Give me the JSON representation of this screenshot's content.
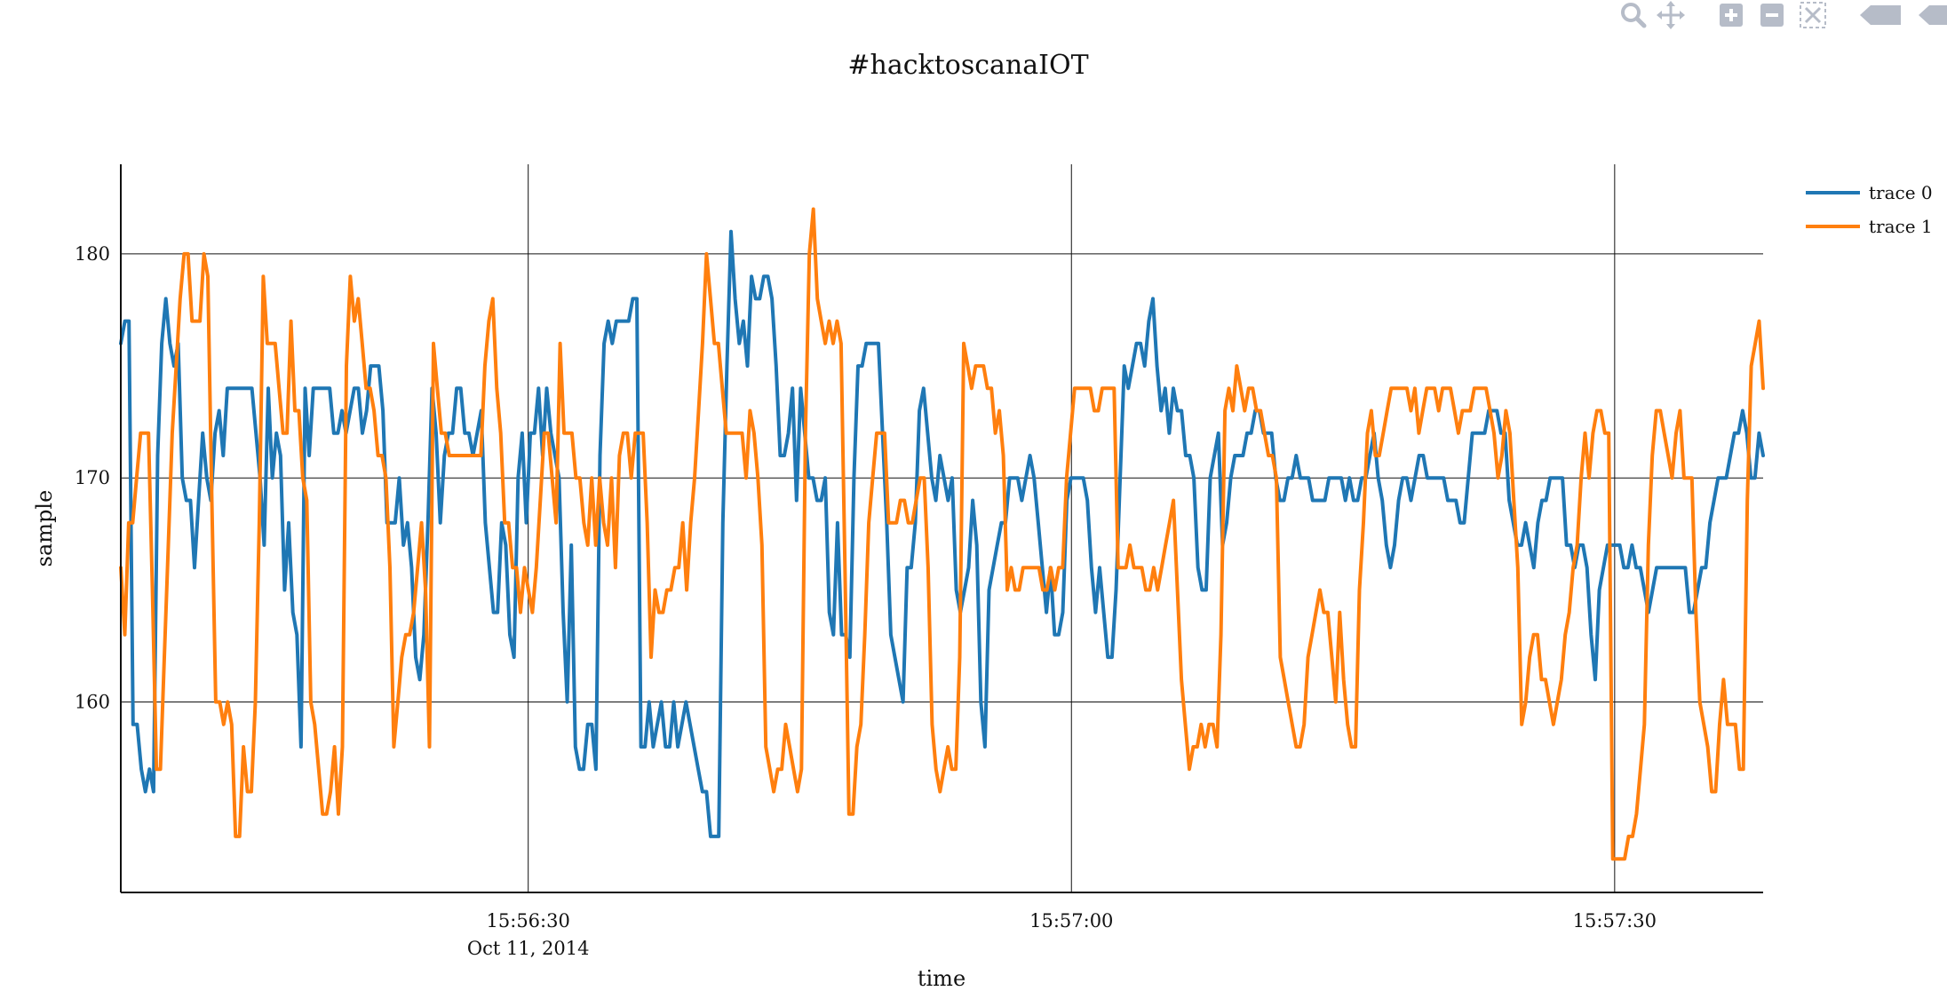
{
  "chart_data": {
    "type": "line",
    "title": "#hacktoscanaIOT",
    "xlabel": "time",
    "ylabel": "sample",
    "x_range": [
      "2014-10-11 15:56:07.5",
      "2014-10-11 15:57:38.2"
    ],
    "ylim": [
      151.5,
      184
    ],
    "x_ticks": [
      {
        "t": "15:56:30",
        "label": "15:56:30",
        "sublabel": "Oct 11, 2014"
      },
      {
        "t": "15:57:00",
        "label": "15:57:00",
        "sublabel": ""
      },
      {
        "t": "15:57:30",
        "label": "15:57:30",
        "sublabel": ""
      }
    ],
    "y_ticks": [
      160,
      170,
      180
    ],
    "grid": true,
    "legend_position": "top-right",
    "series": [
      {
        "name": "trace 0",
        "color": "#1f77b4",
        "t_start": "2014-10-11 15:56:07.5",
        "t_end": "2014-10-11 15:57:38.2",
        "values": [
          176,
          177,
          177,
          159,
          159,
          157,
          156,
          157,
          156,
          171,
          176,
          178,
          176,
          175,
          176,
          170,
          169,
          169,
          166,
          169,
          172,
          170,
          169,
          172,
          173,
          171,
          174,
          174,
          174,
          174,
          174,
          174,
          174,
          172,
          170,
          167,
          174,
          170,
          172,
          171,
          165,
          168,
          164,
          163,
          158,
          174,
          171,
          174,
          174,
          174,
          174,
          174,
          172,
          172,
          173,
          172,
          173,
          174,
          174,
          172,
          173,
          175,
          175,
          175,
          173,
          168,
          168,
          168,
          170,
          167,
          168,
          166,
          162,
          161,
          163,
          168,
          174,
          172,
          168,
          171,
          172,
          172,
          174,
          174,
          172,
          172,
          171,
          172,
          173,
          168,
          166,
          164,
          164,
          168,
          167,
          163,
          162,
          170,
          172,
          168,
          172,
          172,
          174,
          171,
          174,
          172,
          171,
          170,
          164,
          160,
          167,
          158,
          157,
          157,
          159,
          159,
          157,
          171,
          176,
          177,
          176,
          177,
          177,
          177,
          177,
          178,
          178,
          158,
          158,
          160,
          158,
          159,
          160,
          158,
          158,
          160,
          158,
          159,
          160,
          159,
          158,
          157,
          156,
          156,
          154,
          154,
          154,
          168,
          175,
          181,
          178,
          176,
          177,
          175,
          179,
          178,
          178,
          179,
          179,
          178,
          175,
          171,
          171,
          172,
          174,
          169,
          174,
          172,
          170,
          170,
          169,
          169,
          170,
          164,
          163,
          168,
          163,
          163,
          162,
          170,
          175,
          175,
          176,
          176,
          176,
          176,
          172,
          168,
          163,
          162,
          161,
          160,
          166,
          166,
          168,
          173,
          174,
          172,
          170,
          169,
          171,
          170,
          169,
          170,
          165,
          164,
          165,
          166,
          169,
          167,
          160,
          158,
          165,
          166,
          167,
          168,
          168,
          170,
          170,
          170,
          169,
          170,
          171,
          170,
          168,
          166,
          164,
          166,
          163,
          163,
          164,
          169,
          170,
          170,
          170,
          170,
          169,
          166,
          164,
          166,
          164,
          162,
          162,
          165,
          170,
          175,
          174,
          175,
          176,
          176,
          175,
          177,
          178,
          175,
          173,
          174,
          172,
          174,
          173,
          173,
          171,
          171,
          170,
          166,
          165,
          165,
          170,
          171,
          172,
          167,
          168,
          170,
          171,
          171,
          171,
          172,
          172,
          173,
          173,
          172,
          172,
          172,
          170,
          169,
          169,
          170,
          170,
          171,
          170,
          170,
          170,
          169,
          169,
          169,
          169,
          170,
          170,
          170,
          170,
          169,
          170,
          169,
          169,
          170,
          170,
          171,
          172,
          170,
          169,
          167,
          166,
          167,
          169,
          170,
          170,
          169,
          170,
          171,
          171,
          170,
          170,
          170,
          170,
          170,
          169,
          169,
          169,
          168,
          168,
          170,
          172,
          172,
          172,
          172,
          173,
          173,
          173,
          172,
          172,
          169,
          168,
          167,
          167,
          168,
          167,
          166,
          168,
          169,
          169,
          170,
          170,
          170,
          170,
          167,
          167,
          166,
          167,
          167,
          166,
          163,
          161,
          165,
          166,
          167,
          167,
          167,
          167,
          166,
          166,
          167,
          166,
          166,
          165,
          164,
          165,
          166,
          166,
          166,
          166,
          166,
          166,
          166,
          166,
          164,
          164,
          165,
          166,
          166,
          168,
          169,
          170,
          170,
          170,
          171,
          172,
          172,
          173,
          172,
          170,
          170,
          172,
          171
        ]
      },
      {
        "name": "trace 1",
        "color": "#ff7f0e",
        "t_start": "2014-10-11 15:56:07.5",
        "t_end": "2014-10-11 15:57:38.2",
        "values": [
          166,
          163,
          168,
          168,
          170,
          172,
          172,
          172,
          165,
          157,
          157,
          162,
          167,
          172,
          175,
          178,
          180,
          180,
          177,
          177,
          177,
          180,
          179,
          169,
          160,
          160,
          159,
          160,
          159,
          154,
          154,
          158,
          156,
          156,
          160,
          168,
          179,
          176,
          176,
          176,
          174,
          172,
          172,
          177,
          173,
          173,
          170,
          169,
          160,
          159,
          157,
          155,
          155,
          156,
          158,
          155,
          158,
          175,
          179,
          177,
          178,
          176,
          174,
          174,
          173,
          171,
          171,
          170,
          166,
          158,
          160,
          162,
          163,
          163,
          164,
          166,
          168,
          165,
          158,
          176,
          174,
          172,
          172,
          171,
          171,
          171,
          171,
          171,
          171,
          171,
          171,
          171,
          175,
          177,
          178,
          174,
          172,
          168,
          168,
          166,
          166,
          164,
          166,
          165,
          164,
          166,
          169,
          172,
          172,
          170,
          168,
          176,
          172,
          172,
          172,
          170,
          170,
          168,
          167,
          170,
          167,
          170,
          168,
          167,
          170,
          166,
          171,
          172,
          172,
          170,
          172,
          172,
          172,
          168,
          162,
          165,
          164,
          164,
          165,
          165,
          166,
          166,
          168,
          165,
          168,
          170,
          173,
          176,
          180,
          178,
          176,
          176,
          174,
          172,
          172,
          172,
          172,
          172,
          170,
          173,
          172,
          170,
          167,
          158,
          157,
          156,
          157,
          157,
          159,
          158,
          157,
          156,
          157,
          172,
          180,
          182,
          178,
          177,
          176,
          177,
          176,
          177,
          176,
          166,
          155,
          155,
          158,
          159,
          163,
          168,
          170,
          172,
          172,
          172,
          168,
          168,
          168,
          169,
          169,
          168,
          168,
          169,
          170,
          170,
          166,
          159,
          157,
          156,
          157,
          158,
          157,
          157,
          162,
          176,
          175,
          174,
          175,
          175,
          175,
          174,
          174,
          172,
          173,
          171,
          165,
          166,
          165,
          165,
          166,
          166,
          166,
          166,
          166,
          165,
          165,
          166,
          165,
          166,
          166,
          170,
          172,
          174,
          174,
          174,
          174,
          174,
          173,
          173,
          174,
          174,
          174,
          174,
          166,
          166,
          166,
          167,
          166,
          166,
          166,
          165,
          165,
          166,
          165,
          166,
          167,
          168,
          169,
          165,
          161,
          159,
          157,
          158,
          158,
          159,
          158,
          159,
          159,
          158,
          163,
          173,
          174,
          173,
          175,
          174,
          173,
          174,
          174,
          173,
          173,
          172,
          171,
          171,
          170,
          162,
          161,
          160,
          159,
          158,
          158,
          159,
          162,
          163,
          164,
          165,
          164,
          164,
          162,
          160,
          164,
          161,
          159,
          158,
          158,
          165,
          168,
          172,
          173,
          171,
          171,
          172,
          173,
          174,
          174,
          174,
          174,
          174,
          173,
          174,
          172,
          173,
          174,
          174,
          174,
          173,
          174,
          174,
          174,
          173,
          172,
          173,
          173,
          173,
          174,
          174,
          174,
          174,
          173,
          172,
          170,
          171,
          173,
          172,
          169,
          166,
          159,
          160,
          162,
          163,
          163,
          161,
          161,
          160,
          159,
          160,
          161,
          163,
          164,
          166,
          167,
          170,
          172,
          170,
          172,
          173,
          173,
          172,
          172,
          153,
          153,
          153,
          153,
          154,
          154,
          155,
          157,
          159,
          167,
          171,
          173,
          173,
          172,
          171,
          170,
          172,
          173,
          170,
          170,
          170,
          164,
          160,
          159,
          158,
          156,
          156,
          159,
          161,
          159,
          159,
          159,
          157,
          157,
          169,
          175,
          176,
          177,
          174
        ]
      }
    ]
  },
  "modebar": {
    "icons": [
      "zoom-icon",
      "pan-icon",
      "zoom-in-icon",
      "zoom-out-icon",
      "autoscale-icon",
      "reset-axes-icon"
    ]
  }
}
